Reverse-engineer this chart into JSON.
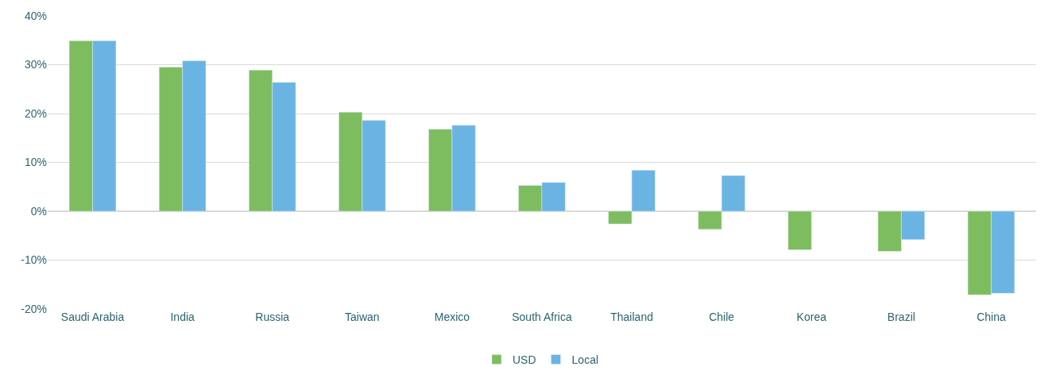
{
  "chart_data": {
    "type": "bar",
    "categories": [
      "Saudi Arabia",
      "India",
      "Russia",
      "Taiwan",
      "Mexico",
      "South Africa",
      "Thailand",
      "Chile",
      "Korea",
      "Brazil",
      "China"
    ],
    "series": [
      {
        "name": "USD",
        "color": "#7dbd5f",
        "values": [
          34.9,
          29.5,
          28.9,
          20.3,
          16.8,
          5.3,
          -2.6,
          -3.7,
          -7.9,
          -8.2,
          -17.1
        ]
      },
      {
        "name": "Local",
        "color": "#6ab4e4",
        "values": [
          34.9,
          30.8,
          26.4,
          18.6,
          17.6,
          5.9,
          8.4,
          7.3,
          null,
          -5.8,
          -16.8
        ]
      }
    ],
    "ylim": [
      -20,
      40
    ],
    "yticks": [
      {
        "value": -20,
        "label": "-20%"
      },
      {
        "value": -10,
        "label": "-10%"
      },
      {
        "value": 0,
        "label": "0%"
      },
      {
        "value": 10,
        "label": "10%"
      },
      {
        "value": 20,
        "label": "20%"
      },
      {
        "value": 30,
        "label": "30%"
      },
      {
        "value": 40,
        "label": "40%"
      }
    ],
    "grid": "y",
    "legend": "bottom"
  }
}
